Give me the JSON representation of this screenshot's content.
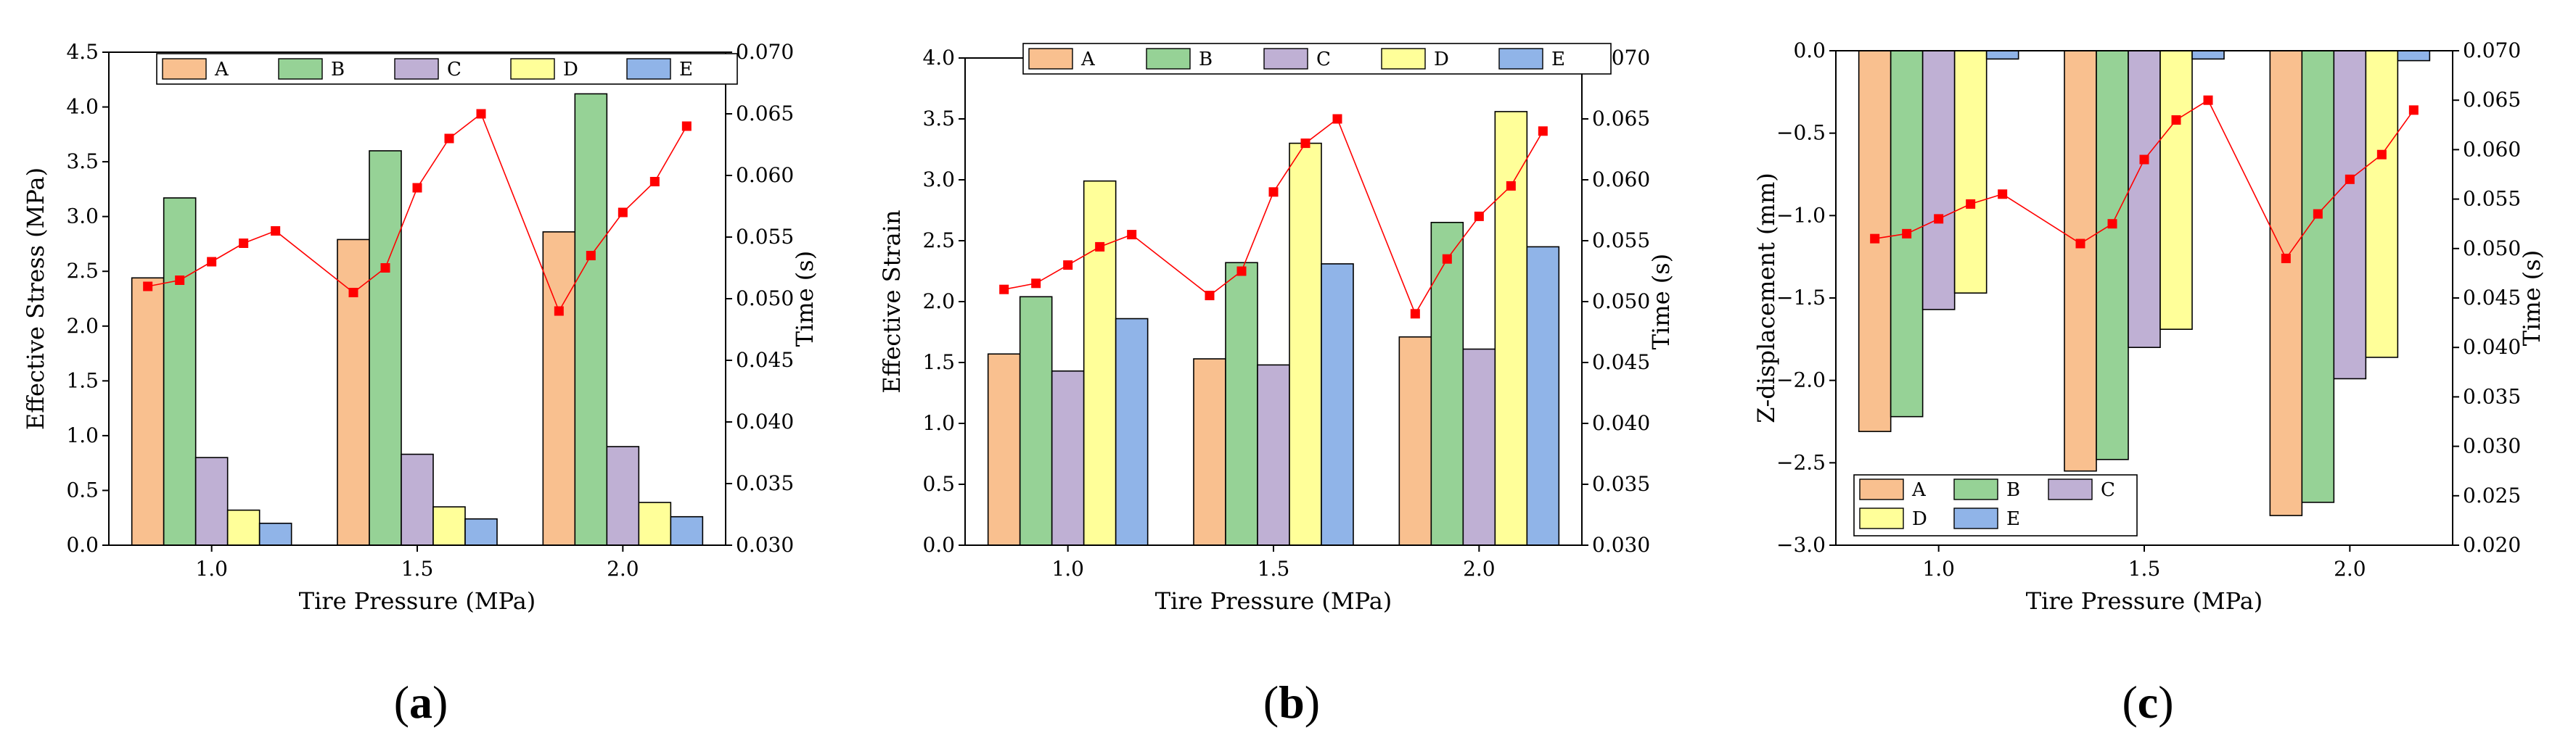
{
  "chart_data": [
    {
      "type": "bar",
      "panel_label": "(a)",
      "categories": [
        "1.0",
        "1.5",
        "2.0"
      ],
      "xlabel": "Tire Pressure (MPa)",
      "ylabel": "Effective Stress (MPa)",
      "ylim": [
        0,
        4.5
      ],
      "yticks": [
        "0.0",
        "0.5",
        "1.0",
        "1.5",
        "2.0",
        "2.5",
        "3.0",
        "3.5",
        "4.0",
        "4.5"
      ],
      "y2label": "Time (s)",
      "y2lim": [
        0.03,
        0.07
      ],
      "y2ticks": [
        "0.030",
        "0.035",
        "0.040",
        "0.045",
        "0.050",
        "0.055",
        "0.060",
        "0.065",
        "0.070"
      ],
      "legend": {
        "placement": "top",
        "labels": [
          "A",
          "B",
          "C",
          "D",
          "E"
        ]
      },
      "series": [
        {
          "name": "A",
          "color": "#f9c08f",
          "values": [
            2.44,
            2.79,
            2.86
          ]
        },
        {
          "name": "B",
          "color": "#96d296",
          "values": [
            3.17,
            3.6,
            4.12
          ]
        },
        {
          "name": "C",
          "color": "#bfb0d4",
          "values": [
            0.8,
            0.83,
            0.9
          ]
        },
        {
          "name": "D",
          "color": "#ffff99",
          "values": [
            0.32,
            0.35,
            0.39
          ]
        },
        {
          "name": "E",
          "color": "#90b4e8",
          "values": [
            0.2,
            0.24,
            0.26
          ]
        }
      ],
      "time_series": {
        "name": "Time",
        "color": "#ff0000",
        "values": [
          [
            0.051,
            0.0515,
            0.053,
            0.0545,
            0.0555
          ],
          [
            0.0505,
            0.0525,
            0.059,
            0.063,
            0.065
          ],
          [
            0.049,
            0.0535,
            0.057,
            0.0595,
            0.064
          ]
        ]
      }
    },
    {
      "type": "bar",
      "panel_label": "(b)",
      "categories": [
        "1.0",
        "1.5",
        "2.0"
      ],
      "xlabel": "Tire Pressure (MPa)",
      "ylabel": "Effective Strain",
      "ylim": [
        0,
        4.0
      ],
      "yticks": [
        "0.0",
        "0.5",
        "1.0",
        "1.5",
        "2.0",
        "2.5",
        "3.0",
        "3.5",
        "4.0"
      ],
      "y2label": "Time (s)",
      "y2lim": [
        0.03,
        0.07
      ],
      "y2ticks": [
        "0.030",
        "0.035",
        "0.040",
        "0.045",
        "0.050",
        "0.055",
        "0.060",
        "0.065",
        "0.070"
      ],
      "legend": {
        "placement": "top",
        "labels": [
          "A",
          "B",
          "C",
          "D",
          "E"
        ]
      },
      "series": [
        {
          "name": "A",
          "color": "#f9c08f",
          "values": [
            1.57,
            1.53,
            1.71
          ]
        },
        {
          "name": "B",
          "color": "#96d296",
          "values": [
            2.04,
            2.32,
            2.65
          ]
        },
        {
          "name": "C",
          "color": "#bfb0d4",
          "values": [
            1.43,
            1.48,
            1.61
          ]
        },
        {
          "name": "D",
          "color": "#ffff99",
          "values": [
            2.99,
            3.3,
            3.56
          ]
        },
        {
          "name": "E",
          "color": "#90b4e8",
          "values": [
            1.86,
            2.31,
            2.45
          ]
        }
      ],
      "time_series": {
        "name": "Time",
        "color": "#ff0000",
        "values": [
          [
            0.051,
            0.0515,
            0.053,
            0.0545,
            0.0555
          ],
          [
            0.0505,
            0.0525,
            0.059,
            0.063,
            0.065
          ],
          [
            0.049,
            0.0535,
            0.057,
            0.0595,
            0.064
          ]
        ]
      }
    },
    {
      "type": "bar",
      "panel_label": "(c)",
      "categories": [
        "1.0",
        "1.5",
        "2.0"
      ],
      "xlabel": "Tire Pressure (MPa)",
      "ylabel": "Z-displacement (mm)",
      "ylim": [
        -3.0,
        0.0
      ],
      "yticks": [
        "−3.0",
        "−2.5",
        "−2.0",
        "−1.5",
        "−1.0",
        "−0.5",
        "0.0"
      ],
      "y2label": "Time (s)",
      "y2lim": [
        0.02,
        0.07
      ],
      "y2ticks": [
        "0.020",
        "0.025",
        "0.030",
        "0.035",
        "0.040",
        "0.045",
        "0.050",
        "0.055",
        "0.060",
        "0.065",
        "0.070"
      ],
      "legend": {
        "placement": "bottom-left",
        "labels": [
          "A",
          "B",
          "C",
          "D",
          "E"
        ]
      },
      "series": [
        {
          "name": "A",
          "color": "#f9c08f",
          "values": [
            -2.31,
            -2.55,
            -2.82
          ]
        },
        {
          "name": "B",
          "color": "#96d296",
          "values": [
            -2.22,
            -2.48,
            -2.74
          ]
        },
        {
          "name": "C",
          "color": "#bfb0d4",
          "values": [
            -1.57,
            -1.8,
            -1.99
          ]
        },
        {
          "name": "D",
          "color": "#ffff99",
          "values": [
            -1.47,
            -1.69,
            -1.86
          ]
        },
        {
          "name": "E",
          "color": "#90b4e8",
          "values": [
            -0.05,
            -0.05,
            -0.06
          ]
        }
      ],
      "time_series": {
        "name": "Time",
        "color": "#ff0000",
        "values": [
          [
            0.051,
            0.0515,
            0.053,
            0.0545,
            0.0555
          ],
          [
            0.0505,
            0.0525,
            0.059,
            0.063,
            0.065
          ],
          [
            0.049,
            0.0535,
            0.057,
            0.0595,
            0.064
          ]
        ]
      }
    }
  ]
}
